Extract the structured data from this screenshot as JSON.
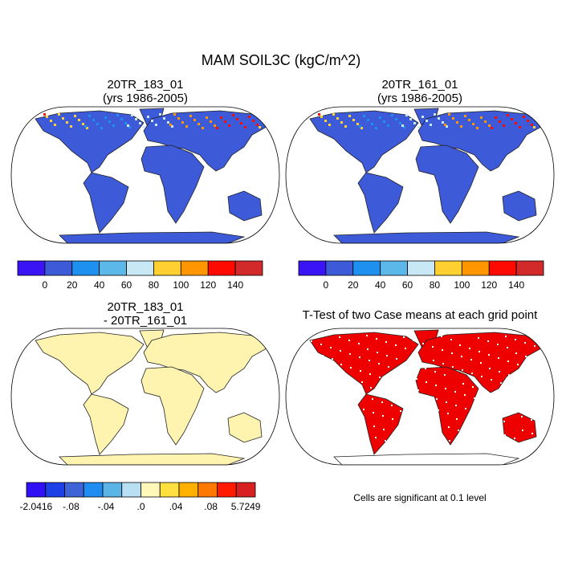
{
  "title": "MAM SOIL3C (kgC/m^2)",
  "panels": [
    {
      "title": [
        "20TR_183_01",
        "(yrs 1986-2005)"
      ],
      "colorbar": {
        "colors": [
          "#3a14f5",
          "#3d5ad8",
          "#1e90f0",
          "#5cb8e8",
          "#c8e8f5",
          "#ffd030",
          "#ff9600",
          "#ff0a00",
          "#d22a2a"
        ],
        "labels": [
          "0",
          "20",
          "40",
          "60",
          "80",
          "100",
          "120",
          "140"
        ]
      }
    },
    {
      "title": [
        "20TR_161_01",
        "(yrs 1986-2005)"
      ],
      "colorbar": {
        "colors": [
          "#3a14f5",
          "#3d5ad8",
          "#1e90f0",
          "#5cb8e8",
          "#c8e8f5",
          "#ffd030",
          "#ff9600",
          "#ff0a00",
          "#d22a2a"
        ],
        "labels": [
          "0",
          "20",
          "40",
          "60",
          "80",
          "100",
          "120",
          "140"
        ]
      }
    },
    {
      "title": [
        "20TR_183_01",
        "- 20TR_161_01"
      ],
      "colorbar": {
        "colors": [
          "#3010f5",
          "#1c40e8",
          "#3c64d6",
          "#1e8cf0",
          "#5ab4e6",
          "#b8e0f2",
          "#fff8b8",
          "#ffe040",
          "#ffb000",
          "#ff7800",
          "#ff1a00",
          "#d82020"
        ],
        "labels": [
          "-2.0416",
          "-.08",
          "-.04",
          ".0",
          ".04",
          ".08",
          "5.7249"
        ]
      }
    },
    {
      "title": [
        "T-Test of two Case means at each grid point"
      ],
      "note": "Cells are significant at 0.1 level"
    }
  ]
}
